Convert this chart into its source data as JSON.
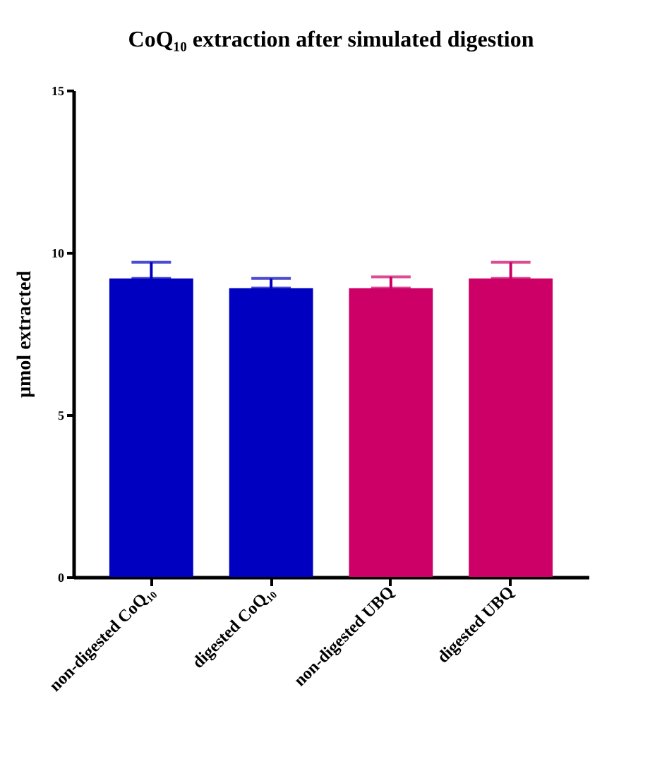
{
  "chart_data": {
    "type": "bar",
    "title": "CoQ₁₀ extraction after simulated digestion",
    "ylabel": "µmol extracted",
    "categories": [
      "non-digested CoQ₁₀",
      "digested CoQ₁₀",
      "non-digested UBQ",
      "digested UBQ"
    ],
    "values": [
      9.2,
      8.9,
      8.9,
      9.2
    ],
    "colors": [
      "#0000c0",
      "#0000c0",
      "#cc0066",
      "#cc0066"
    ],
    "errors": [
      [
        9.2,
        9.7
      ],
      [
        8.9,
        9.2
      ],
      [
        8.9,
        9.25
      ],
      [
        9.2,
        9.7
      ]
    ],
    "ylim": [
      0,
      15
    ],
    "yticks": [
      0,
      5,
      10,
      15
    ],
    "grid": false
  }
}
